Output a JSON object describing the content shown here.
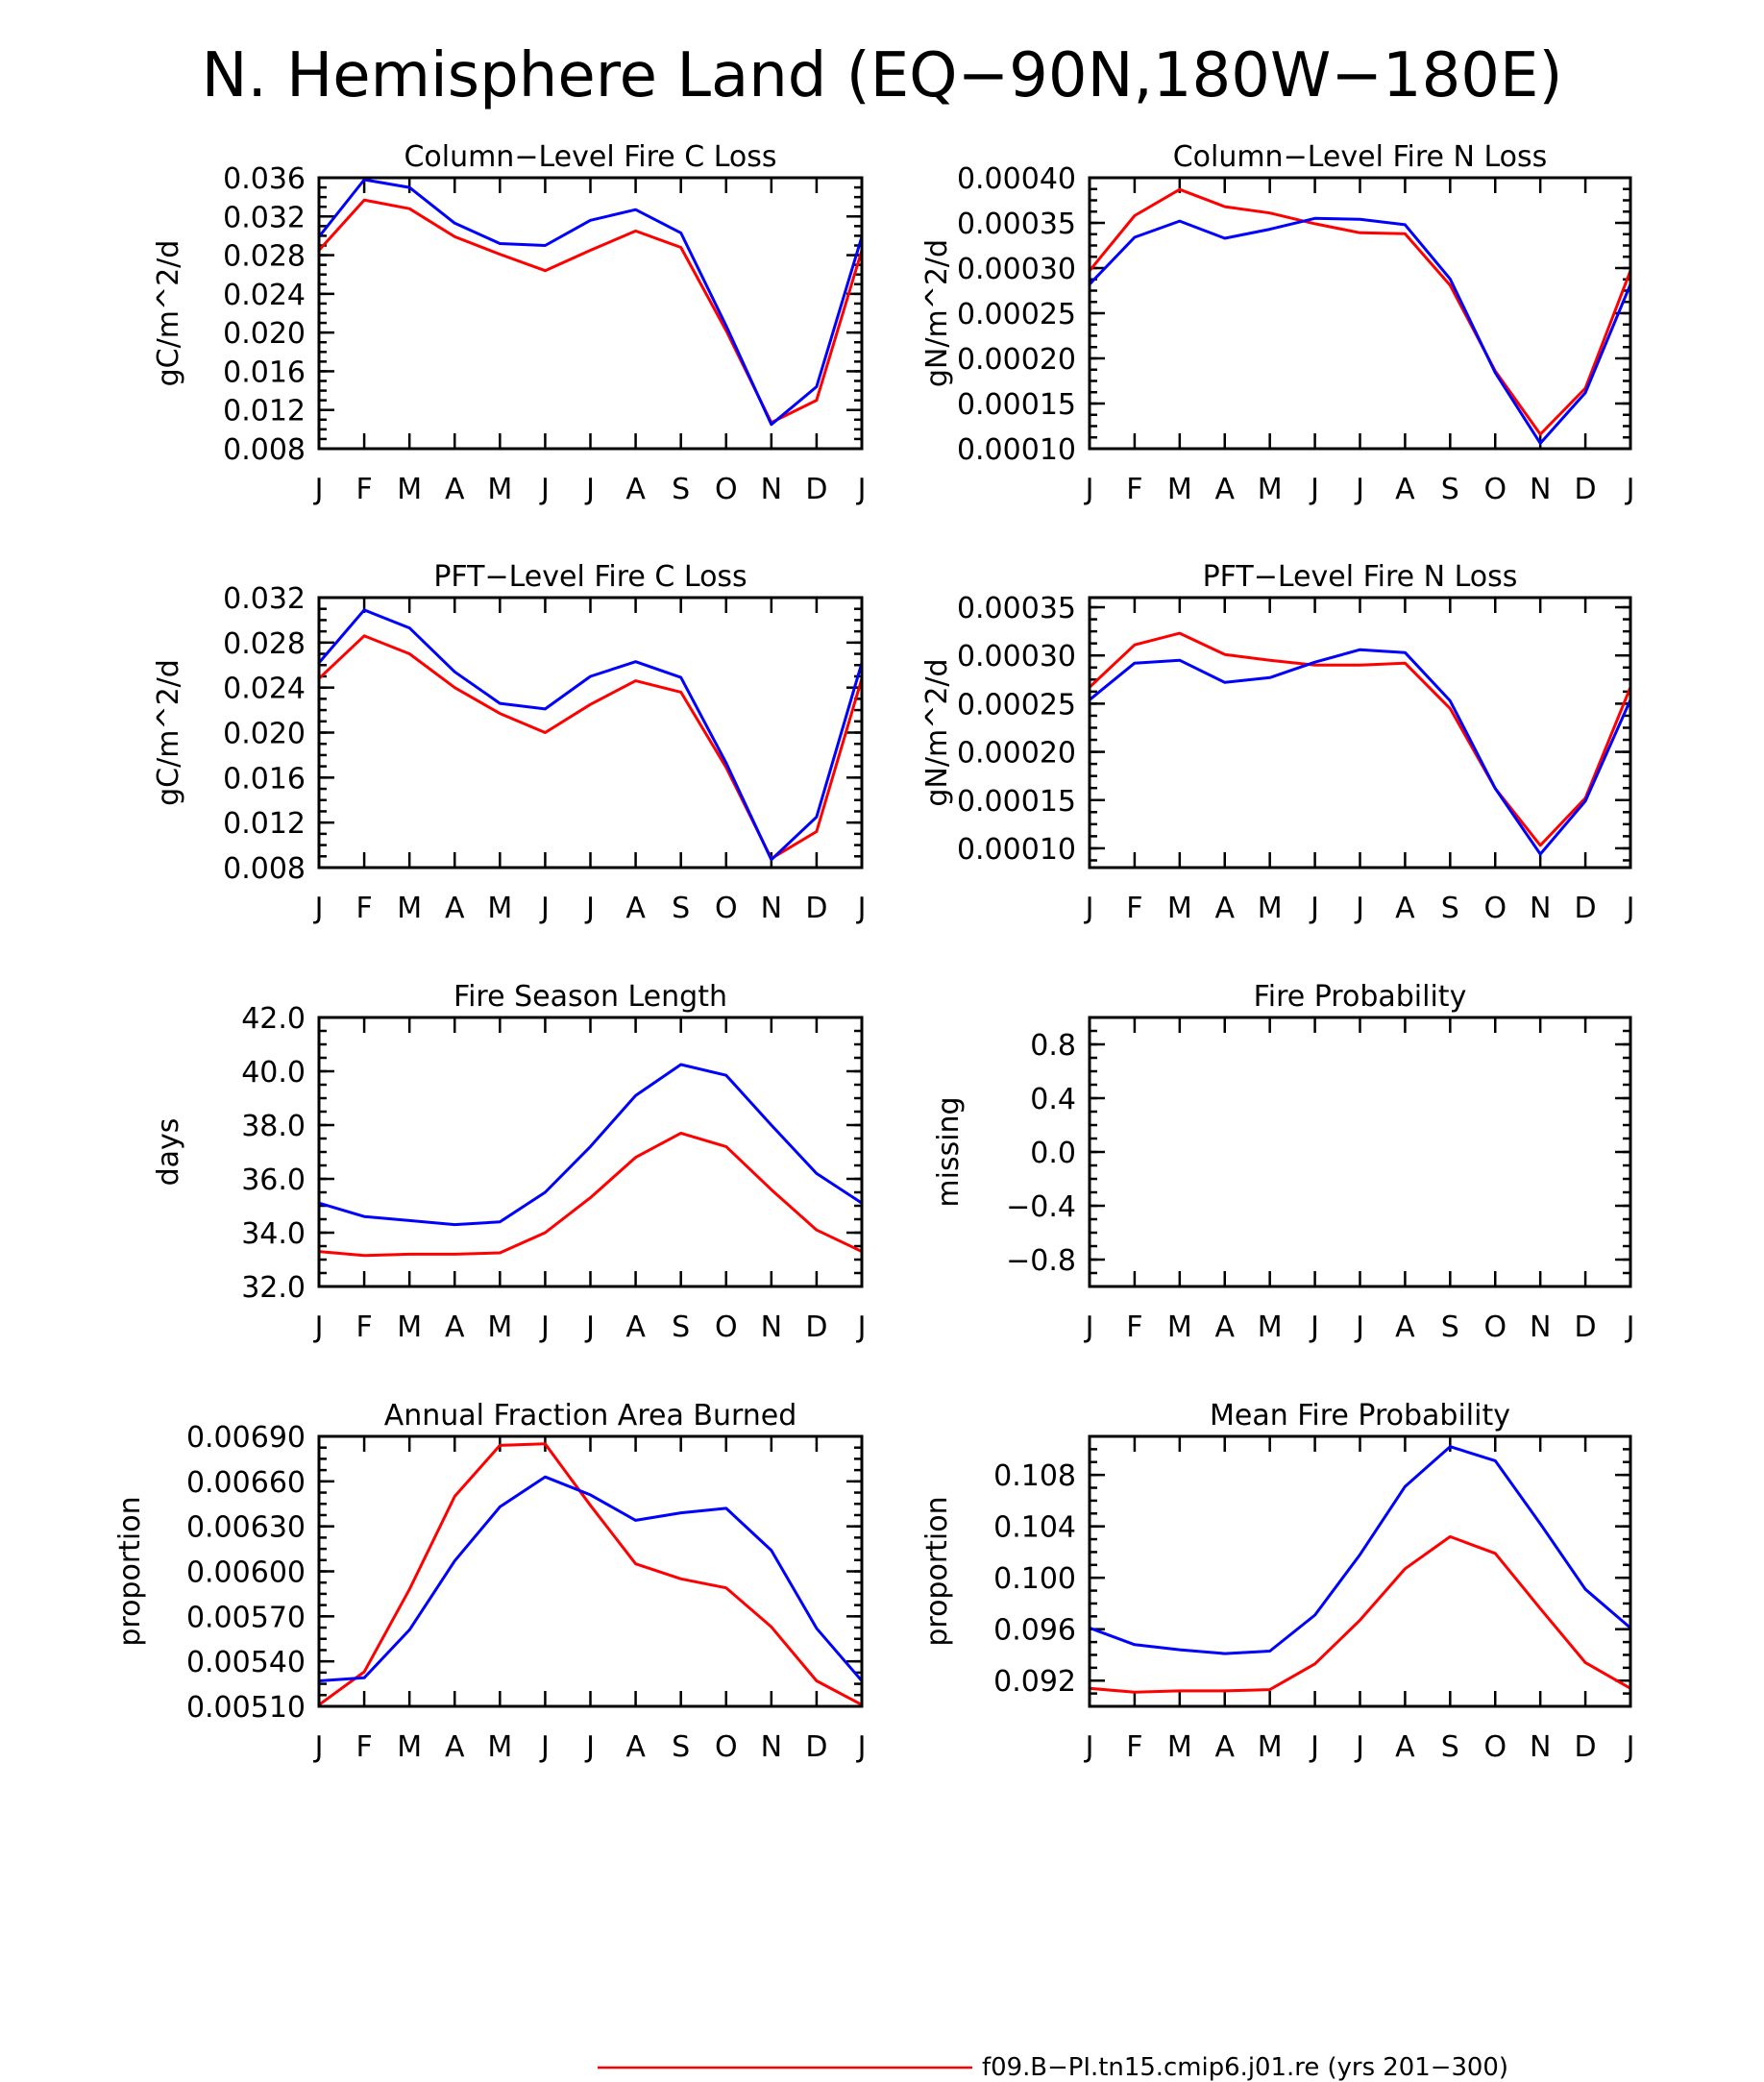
{
  "figure": {
    "title": "N. Hemisphere Land (EQ−90N,180W−180E)",
    "legend": [
      {
        "label": "f09.B−PI.tn15.cmip6.j01.re (yrs 201−300)",
        "color": "#ff0000"
      }
    ]
  },
  "chart_data": [
    {
      "type": "line",
      "title": "Column−Level Fire C Loss",
      "ylabel": "gC/m^2/d",
      "ylim": [
        0.008,
        0.036
      ],
      "yticks": [
        "0.008",
        "0.012",
        "0.016",
        "0.020",
        "0.024",
        "0.028",
        "0.032",
        "0.036"
      ],
      "categories": [
        "J",
        "F",
        "M",
        "A",
        "M",
        "J",
        "J",
        "A",
        "S",
        "O",
        "N",
        "D",
        "J"
      ],
      "series": [
        {
          "color": "#ff0000",
          "values": [
            0.0285,
            0.0337,
            0.0328,
            0.0299,
            0.0281,
            0.0264,
            0.0285,
            0.0305,
            0.0288,
            0.0202,
            0.0107,
            0.013,
            0.0285
          ]
        },
        {
          "color": "#0000ff",
          "values": [
            0.0299,
            0.0358,
            0.035,
            0.0313,
            0.0292,
            0.029,
            0.0316,
            0.0327,
            0.0303,
            0.0207,
            0.0105,
            0.0144,
            0.0299
          ]
        }
      ]
    },
    {
      "type": "line",
      "title": "Column−Level Fire N Loss",
      "ylabel": "gN/m^2/d",
      "ylim": [
        0.0001,
        0.0004
      ],
      "yticks": [
        "0.00010",
        "0.00015",
        "0.00020",
        "0.00025",
        "0.00030",
        "0.00035",
        "0.00040"
      ],
      "categories": [
        "J",
        "F",
        "M",
        "A",
        "M",
        "J",
        "J",
        "A",
        "S",
        "O",
        "N",
        "D",
        "J"
      ],
      "series": [
        {
          "color": "#ff0000",
          "values": [
            0.000297,
            0.000358,
            0.000387,
            0.000368,
            0.000361,
            0.000349,
            0.000339,
            0.000338,
            0.000281,
            0.000186,
            0.000116,
            0.000167,
            0.000297
          ]
        },
        {
          "color": "#0000ff",
          "values": [
            0.000282,
            0.000334,
            0.000352,
            0.000333,
            0.000343,
            0.000355,
            0.000354,
            0.000348,
            0.000288,
            0.000184,
            0.000106,
            0.000162,
            0.000282
          ]
        }
      ]
    },
    {
      "type": "line",
      "title": "PFT−Level Fire C Loss",
      "ylabel": "gC/m^2/d",
      "ylim": [
        0.008,
        0.032
      ],
      "yticks": [
        "0.008",
        "0.012",
        "0.016",
        "0.020",
        "0.024",
        "0.028",
        "0.032"
      ],
      "categories": [
        "J",
        "F",
        "M",
        "A",
        "M",
        "J",
        "J",
        "A",
        "S",
        "O",
        "N",
        "D",
        "J"
      ],
      "series": [
        {
          "color": "#ff0000",
          "values": [
            0.0248,
            0.0286,
            0.027,
            0.024,
            0.0217,
            0.02,
            0.0225,
            0.0246,
            0.0236,
            0.0169,
            0.0088,
            0.0112,
            0.0248
          ]
        },
        {
          "color": "#0000ff",
          "values": [
            0.0262,
            0.0309,
            0.0293,
            0.0254,
            0.0226,
            0.0221,
            0.025,
            0.0263,
            0.0249,
            0.0173,
            0.0087,
            0.0125,
            0.0262
          ]
        }
      ]
    },
    {
      "type": "line",
      "title": "PFT−Level Fire N Loss",
      "ylabel": "gN/m^2/d",
      "ylim": [
        8e-05,
        0.00036
      ],
      "yticks": [
        "0.00010",
        "0.00015",
        "0.00020",
        "0.00025",
        "0.00030",
        "0.00035"
      ],
      "categories": [
        "J",
        "F",
        "M",
        "A",
        "M",
        "J",
        "J",
        "A",
        "S",
        "O",
        "N",
        "D",
        "J"
      ],
      "series": [
        {
          "color": "#ff0000",
          "values": [
            0.000267,
            0.000311,
            0.000323,
            0.000301,
            0.000295,
            0.00029,
            0.00029,
            0.000292,
            0.000245,
            0.000162,
            0.000103,
            0.000152,
            0.000267
          ]
        },
        {
          "color": "#0000ff",
          "values": [
            0.000254,
            0.000292,
            0.000295,
            0.000272,
            0.000277,
            0.000293,
            0.000306,
            0.000303,
            0.000253,
            0.000162,
            9.4e-05,
            0.000149,
            0.000254
          ]
        }
      ]
    },
    {
      "type": "line",
      "title": "Fire Season Length",
      "ylabel": "days",
      "ylim": [
        32.0,
        42.0
      ],
      "yticks": [
        "32.0",
        "34.0",
        "36.0",
        "38.0",
        "40.0",
        "42.0"
      ],
      "categories": [
        "J",
        "F",
        "M",
        "A",
        "M",
        "J",
        "J",
        "A",
        "S",
        "O",
        "N",
        "D",
        "J"
      ],
      "series": [
        {
          "color": "#ff0000",
          "values": [
            33.3,
            33.15,
            33.2,
            33.2,
            33.25,
            34.0,
            35.3,
            36.8,
            37.7,
            37.2,
            35.6,
            34.1,
            33.3
          ]
        },
        {
          "color": "#0000ff",
          "values": [
            35.1,
            34.6,
            34.45,
            34.3,
            34.4,
            35.5,
            37.2,
            39.1,
            40.25,
            39.85,
            38.0,
            36.2,
            35.1
          ]
        }
      ]
    },
    {
      "type": "line",
      "title": "Fire Probability",
      "ylabel": "missing",
      "ylim": [
        -1.0,
        1.0
      ],
      "yticks": [
        "−0.8",
        "−0.4",
        "0.0",
        "0.4",
        "0.8"
      ],
      "categories": [
        "J",
        "F",
        "M",
        "A",
        "M",
        "J",
        "J",
        "A",
        "S",
        "O",
        "N",
        "D",
        "J"
      ],
      "series": []
    },
    {
      "type": "line",
      "title": "Annual Fraction Area Burned",
      "ylabel": "proportion",
      "ylim": [
        0.0051,
        0.0069
      ],
      "yticks": [
        "0.00510",
        "0.00540",
        "0.00570",
        "0.00600",
        "0.00630",
        "0.00660",
        "0.00690"
      ],
      "categories": [
        "J",
        "F",
        "M",
        "A",
        "M",
        "J",
        "J",
        "A",
        "S",
        "O",
        "N",
        "D",
        "J"
      ],
      "series": [
        {
          "color": "#ff0000",
          "values": [
            0.00511,
            0.00533,
            0.00588,
            0.0065,
            0.00684,
            0.00685,
            0.00644,
            0.00605,
            0.00595,
            0.00589,
            0.00563,
            0.00527,
            0.00511
          ]
        },
        {
          "color": "#0000ff",
          "values": [
            0.00527,
            0.00529,
            0.00561,
            0.00607,
            0.00643,
            0.00663,
            0.00651,
            0.00634,
            0.00639,
            0.00642,
            0.00614,
            0.00562,
            0.00527
          ]
        }
      ]
    },
    {
      "type": "line",
      "title": "Mean Fire Probability",
      "ylabel": "proportion",
      "ylim": [
        0.09,
        0.111
      ],
      "yticks": [
        "0.092",
        "0.096",
        "0.100",
        "0.104",
        "0.108"
      ],
      "categories": [
        "J",
        "F",
        "M",
        "A",
        "M",
        "J",
        "J",
        "A",
        "S",
        "O",
        "N",
        "D",
        "J"
      ],
      "series": [
        {
          "color": "#ff0000",
          "values": [
            0.0914,
            0.0911,
            0.0912,
            0.0912,
            0.0913,
            0.0933,
            0.0967,
            0.1007,
            0.1032,
            0.1019,
            0.0976,
            0.0934,
            0.0914
          ]
        },
        {
          "color": "#0000ff",
          "values": [
            0.0961,
            0.0948,
            0.0944,
            0.0941,
            0.0943,
            0.0971,
            0.1018,
            0.1071,
            0.1102,
            0.1091,
            0.1042,
            0.0991,
            0.0961
          ]
        }
      ]
    }
  ]
}
